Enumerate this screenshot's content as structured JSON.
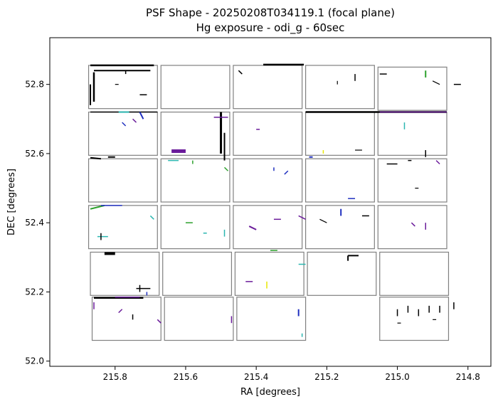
{
  "chart_data": {
    "type": "scatter",
    "title": "PSF Shape - 20250208T034119.1 (focal plane)",
    "subtitle": "Hg exposure - odi_g - 60sec",
    "xlabel": "RA [degrees]",
    "ylabel": "DEC [degrees]",
    "xlim": [
      215.985,
      214.735
    ],
    "ylim": [
      51.985,
      52.935
    ],
    "x_inverted": true,
    "grid": false,
    "legend": "none",
    "xticks": [
      215.8,
      215.6,
      215.4,
      215.2,
      215.0,
      214.8
    ],
    "xtick_labels": [
      "215.8",
      "215.6",
      "215.4",
      "215.2",
      "215.0",
      "214.8"
    ],
    "yticks": [
      52.0,
      52.2,
      52.4,
      52.6,
      52.8
    ],
    "ytick_labels": [
      "52.0",
      "52.2",
      "52.4",
      "52.6",
      "52.8"
    ],
    "cell_color": "#808080",
    "colors": {
      "black": "#000000",
      "purple": "#6a1b9a",
      "blue": "#1f2fbf",
      "teal": "#2bb6b0",
      "green": "#2ca02c",
      "yellow": "#e8e800"
    },
    "cells": [
      {
        "ra0": 215.875,
        "ra1": 215.68,
        "dec0": 52.73,
        "dec1": 52.855
      },
      {
        "ra0": 215.67,
        "ra1": 215.475,
        "dec0": 52.73,
        "dec1": 52.855
      },
      {
        "ra0": 215.465,
        "ra1": 215.27,
        "dec0": 52.73,
        "dec1": 52.855
      },
      {
        "ra0": 215.26,
        "ra1": 215.065,
        "dec0": 52.73,
        "dec1": 52.855
      },
      {
        "ra0": 215.055,
        "ra1": 214.86,
        "dec0": 52.725,
        "dec1": 52.85
      },
      {
        "ra0": 215.875,
        "ra1": 215.68,
        "dec0": 52.595,
        "dec1": 52.72
      },
      {
        "ra0": 215.67,
        "ra1": 215.475,
        "dec0": 52.595,
        "dec1": 52.72
      },
      {
        "ra0": 215.465,
        "ra1": 215.27,
        "dec0": 52.595,
        "dec1": 52.72
      },
      {
        "ra0": 215.26,
        "ra1": 215.065,
        "dec0": 52.595,
        "dec1": 52.72
      },
      {
        "ra0": 215.055,
        "ra1": 214.86,
        "dec0": 52.595,
        "dec1": 52.72
      },
      {
        "ra0": 215.875,
        "ra1": 215.68,
        "dec0": 52.46,
        "dec1": 52.585
      },
      {
        "ra0": 215.67,
        "ra1": 215.475,
        "dec0": 52.46,
        "dec1": 52.585
      },
      {
        "ra0": 215.465,
        "ra1": 215.27,
        "dec0": 52.46,
        "dec1": 52.585
      },
      {
        "ra0": 215.26,
        "ra1": 215.065,
        "dec0": 52.46,
        "dec1": 52.585
      },
      {
        "ra0": 215.055,
        "ra1": 214.86,
        "dec0": 52.46,
        "dec1": 52.585
      },
      {
        "ra0": 215.875,
        "ra1": 215.68,
        "dec0": 52.325,
        "dec1": 52.45
      },
      {
        "ra0": 215.67,
        "ra1": 215.475,
        "dec0": 52.325,
        "dec1": 52.45
      },
      {
        "ra0": 215.465,
        "ra1": 215.27,
        "dec0": 52.325,
        "dec1": 52.45
      },
      {
        "ra0": 215.26,
        "ra1": 215.065,
        "dec0": 52.325,
        "dec1": 52.45
      },
      {
        "ra0": 215.055,
        "ra1": 214.86,
        "dec0": 52.325,
        "dec1": 52.45
      },
      {
        "ra0": 215.87,
        "ra1": 215.675,
        "dec0": 52.19,
        "dec1": 52.315
      },
      {
        "ra0": 215.665,
        "ra1": 215.47,
        "dec0": 52.19,
        "dec1": 52.315
      },
      {
        "ra0": 215.46,
        "ra1": 215.265,
        "dec0": 52.19,
        "dec1": 52.315
      },
      {
        "ra0": 215.255,
        "ra1": 215.06,
        "dec0": 52.19,
        "dec1": 52.315
      },
      {
        "ra0": 215.05,
        "ra1": 214.855,
        "dec0": 52.19,
        "dec1": 52.315
      },
      {
        "ra0": 215.865,
        "ra1": 215.67,
        "dec0": 52.06,
        "dec1": 52.185
      },
      {
        "ra0": 215.66,
        "ra1": 215.465,
        "dec0": 52.06,
        "dec1": 52.185
      },
      {
        "ra0": 215.455,
        "ra1": 215.26,
        "dec0": 52.06,
        "dec1": 52.185
      },
      {
        "ra0": 215.05,
        "ra1": 214.855,
        "dec0": 52.06,
        "dec1": 52.185
      }
    ],
    "psf_segments": [
      {
        "ra0": 215.87,
        "dec0": 52.855,
        "ra1": 215.69,
        "dec1": 52.855,
        "color": "black",
        "w": 2.5
      },
      {
        "ra0": 215.86,
        "dec0": 52.84,
        "ra1": 215.7,
        "dec1": 52.84,
        "color": "black",
        "w": 2
      },
      {
        "ra0": 215.86,
        "dec0": 52.835,
        "ra1": 215.86,
        "dec1": 52.75,
        "color": "black",
        "w": 2.5
      },
      {
        "ra0": 215.87,
        "dec0": 52.8,
        "ra1": 215.87,
        "dec1": 52.74,
        "color": "black",
        "w": 2
      },
      {
        "ra0": 215.8,
        "dec0": 52.8,
        "ra1": 215.79,
        "dec1": 52.8,
        "color": "black",
        "w": 1.2
      },
      {
        "ra0": 215.73,
        "dec0": 52.77,
        "ra1": 215.71,
        "dec1": 52.77,
        "color": "black",
        "w": 1.5
      },
      {
        "ra0": 215.77,
        "dec0": 52.84,
        "ra1": 215.77,
        "dec1": 52.83,
        "color": "black",
        "w": 1.5
      },
      {
        "ra0": 215.38,
        "dec0": 52.857,
        "ra1": 215.265,
        "dec1": 52.857,
        "color": "black",
        "w": 2.5
      },
      {
        "ra0": 215.45,
        "dec0": 52.84,
        "ra1": 215.44,
        "dec1": 52.83,
        "color": "black",
        "w": 1.5
      },
      {
        "ra0": 215.17,
        "dec0": 52.81,
        "ra1": 215.17,
        "dec1": 52.8,
        "color": "black",
        "w": 1.2
      },
      {
        "ra0": 215.12,
        "dec0": 52.83,
        "ra1": 215.12,
        "dec1": 52.81,
        "color": "black",
        "w": 1.5
      },
      {
        "ra0": 215.05,
        "dec0": 52.83,
        "ra1": 215.03,
        "dec1": 52.83,
        "color": "black",
        "w": 1.5
      },
      {
        "ra0": 214.92,
        "dec0": 52.84,
        "ra1": 214.92,
        "dec1": 52.82,
        "color": "green",
        "w": 2
      },
      {
        "ra0": 214.88,
        "dec0": 52.8,
        "ra1": 214.9,
        "dec1": 52.81,
        "color": "black",
        "w": 1.2
      },
      {
        "ra0": 214.84,
        "dec0": 52.8,
        "ra1": 214.82,
        "dec1": 52.8,
        "color": "black",
        "w": 1.5
      },
      {
        "ra0": 215.87,
        "dec0": 52.72,
        "ra1": 215.68,
        "dec1": 52.72,
        "color": "black",
        "w": 1.5
      },
      {
        "ra0": 215.79,
        "dec0": 52.72,
        "ra1": 215.76,
        "dec1": 52.72,
        "color": "teal",
        "w": 2
      },
      {
        "ra0": 215.73,
        "dec0": 52.72,
        "ra1": 215.72,
        "dec1": 52.7,
        "color": "blue",
        "w": 2
      },
      {
        "ra0": 215.78,
        "dec0": 52.69,
        "ra1": 215.77,
        "dec1": 52.68,
        "color": "blue",
        "w": 1.5
      },
      {
        "ra0": 215.75,
        "dec0": 52.7,
        "ra1": 215.74,
        "dec1": 52.69,
        "color": "purple",
        "w": 1.5
      },
      {
        "ra0": 215.5,
        "dec0": 52.72,
        "ra1": 215.5,
        "dec1": 52.6,
        "color": "black",
        "w": 3
      },
      {
        "ra0": 215.49,
        "dec0": 52.66,
        "ra1": 215.49,
        "dec1": 52.58,
        "color": "black",
        "w": 2
      },
      {
        "ra0": 215.52,
        "dec0": 52.705,
        "ra1": 215.48,
        "dec1": 52.705,
        "color": "purple",
        "w": 1.5
      },
      {
        "ra0": 215.64,
        "dec0": 52.607,
        "ra1": 215.6,
        "dec1": 52.607,
        "color": "purple",
        "w": 5
      },
      {
        "ra0": 215.26,
        "dec0": 52.72,
        "ra1": 214.86,
        "dec1": 52.72,
        "color": "black",
        "w": 2.5
      },
      {
        "ra0": 215.05,
        "dec0": 52.72,
        "ra1": 214.86,
        "dec1": 52.72,
        "color": "purple",
        "w": 1.5
      },
      {
        "ra0": 214.98,
        "dec0": 52.69,
        "ra1": 214.98,
        "dec1": 52.67,
        "color": "teal",
        "w": 1.5
      },
      {
        "ra0": 215.4,
        "dec0": 52.67,
        "ra1": 215.39,
        "dec1": 52.67,
        "color": "purple",
        "w": 1.5
      },
      {
        "ra0": 215.12,
        "dec0": 52.61,
        "ra1": 215.1,
        "dec1": 52.61,
        "color": "black",
        "w": 1.2
      },
      {
        "ra0": 214.92,
        "dec0": 52.61,
        "ra1": 214.92,
        "dec1": 52.59,
        "color": "black",
        "w": 1.5
      },
      {
        "ra0": 215.87,
        "dec0": 52.588,
        "ra1": 215.84,
        "dec1": 52.585,
        "color": "black",
        "w": 2
      },
      {
        "ra0": 215.82,
        "dec0": 52.59,
        "ra1": 215.8,
        "dec1": 52.59,
        "color": "black",
        "w": 2
      },
      {
        "ra0": 215.65,
        "dec0": 52.58,
        "ra1": 215.62,
        "dec1": 52.58,
        "color": "teal",
        "w": 1.5
      },
      {
        "ra0": 215.58,
        "dec0": 52.58,
        "ra1": 215.58,
        "dec1": 52.57,
        "color": "green",
        "w": 1.5
      },
      {
        "ra0": 215.49,
        "dec0": 52.56,
        "ra1": 215.48,
        "dec1": 52.55,
        "color": "green",
        "w": 1.5
      },
      {
        "ra0": 215.35,
        "dec0": 52.56,
        "ra1": 215.35,
        "dec1": 52.55,
        "color": "blue",
        "w": 1.5
      },
      {
        "ra0": 215.32,
        "dec0": 52.54,
        "ra1": 215.31,
        "dec1": 52.55,
        "color": "blue",
        "w": 1.5
      },
      {
        "ra0": 215.25,
        "dec0": 52.59,
        "ra1": 215.24,
        "dec1": 52.59,
        "color": "blue",
        "w": 2
      },
      {
        "ra0": 215.21,
        "dec0": 52.6,
        "ra1": 215.21,
        "dec1": 52.61,
        "color": "yellow",
        "w": 1.5
      },
      {
        "ra0": 215.14,
        "dec0": 52.47,
        "ra1": 215.12,
        "dec1": 52.47,
        "color": "blue",
        "w": 1.5
      },
      {
        "ra0": 215.03,
        "dec0": 52.57,
        "ra1": 215.0,
        "dec1": 52.57,
        "color": "black",
        "w": 1.5
      },
      {
        "ra0": 214.97,
        "dec0": 52.58,
        "ra1": 214.96,
        "dec1": 52.58,
        "color": "black",
        "w": 1.5
      },
      {
        "ra0": 214.89,
        "dec0": 52.58,
        "ra1": 214.88,
        "dec1": 52.57,
        "color": "purple",
        "w": 1.5
      },
      {
        "ra0": 214.95,
        "dec0": 52.5,
        "ra1": 214.94,
        "dec1": 52.5,
        "color": "black",
        "w": 1.2
      },
      {
        "ra0": 215.87,
        "dec0": 52.44,
        "ra1": 215.83,
        "dec1": 52.45,
        "color": "green",
        "w": 2
      },
      {
        "ra0": 215.84,
        "dec0": 52.45,
        "ra1": 215.78,
        "dec1": 52.45,
        "color": "blue",
        "w": 1.5
      },
      {
        "ra0": 215.85,
        "dec0": 52.36,
        "ra1": 215.82,
        "dec1": 52.36,
        "color": "teal",
        "w": 1.5
      },
      {
        "ra0": 215.84,
        "dec0": 52.37,
        "ra1": 215.84,
        "dec1": 52.35,
        "color": "black",
        "w": 1.5
      },
      {
        "ra0": 215.7,
        "dec0": 52.42,
        "ra1": 215.69,
        "dec1": 52.41,
        "color": "teal",
        "w": 1.5
      },
      {
        "ra0": 215.6,
        "dec0": 52.4,
        "ra1": 215.58,
        "dec1": 52.4,
        "color": "green",
        "w": 1.5
      },
      {
        "ra0": 215.55,
        "dec0": 52.37,
        "ra1": 215.54,
        "dec1": 52.37,
        "color": "teal",
        "w": 1.5
      },
      {
        "ra0": 215.49,
        "dec0": 52.38,
        "ra1": 215.49,
        "dec1": 52.36,
        "color": "teal",
        "w": 1.5
      },
      {
        "ra0": 215.42,
        "dec0": 52.39,
        "ra1": 215.4,
        "dec1": 52.38,
        "color": "purple",
        "w": 2
      },
      {
        "ra0": 215.35,
        "dec0": 52.41,
        "ra1": 215.33,
        "dec1": 52.41,
        "color": "purple",
        "w": 1.5
      },
      {
        "ra0": 215.28,
        "dec0": 52.42,
        "ra1": 215.26,
        "dec1": 52.41,
        "color": "purple",
        "w": 1.5
      },
      {
        "ra0": 215.22,
        "dec0": 52.41,
        "ra1": 215.2,
        "dec1": 52.4,
        "color": "black",
        "w": 1.2
      },
      {
        "ra0": 215.16,
        "dec0": 52.44,
        "ra1": 215.16,
        "dec1": 52.42,
        "color": "blue",
        "w": 2
      },
      {
        "ra0": 215.1,
        "dec0": 52.42,
        "ra1": 215.08,
        "dec1": 52.42,
        "color": "black",
        "w": 1.5
      },
      {
        "ra0": 214.96,
        "dec0": 52.4,
        "ra1": 214.95,
        "dec1": 52.39,
        "color": "purple",
        "w": 1.5
      },
      {
        "ra0": 214.92,
        "dec0": 52.4,
        "ra1": 214.92,
        "dec1": 52.38,
        "color": "purple",
        "w": 1.5
      },
      {
        "ra0": 215.83,
        "dec0": 52.311,
        "ra1": 215.8,
        "dec1": 52.311,
        "color": "black",
        "w": 4
      },
      {
        "ra0": 215.73,
        "dec0": 52.22,
        "ra1": 215.73,
        "dec1": 52.2,
        "color": "black",
        "w": 1.5
      },
      {
        "ra0": 215.74,
        "dec0": 52.21,
        "ra1": 215.7,
        "dec1": 52.21,
        "color": "black",
        "w": 1.5
      },
      {
        "ra0": 215.71,
        "dec0": 52.2,
        "ra1": 215.71,
        "dec1": 52.19,
        "color": "blue",
        "w": 1.5
      },
      {
        "ra0": 215.43,
        "dec0": 52.23,
        "ra1": 215.41,
        "dec1": 52.23,
        "color": "purple",
        "w": 1.5
      },
      {
        "ra0": 215.36,
        "dec0": 52.32,
        "ra1": 215.34,
        "dec1": 52.32,
        "color": "green",
        "w": 1.5
      },
      {
        "ra0": 215.37,
        "dec0": 52.23,
        "ra1": 215.37,
        "dec1": 52.21,
        "color": "yellow",
        "w": 1.5
      },
      {
        "ra0": 215.28,
        "dec0": 52.28,
        "ra1": 215.26,
        "dec1": 52.28,
        "color": "teal",
        "w": 1.5
      },
      {
        "ra0": 215.14,
        "dec0": 52.305,
        "ra1": 215.11,
        "dec1": 52.305,
        "color": "black",
        "w": 2
      },
      {
        "ra0": 215.14,
        "dec0": 52.305,
        "ra1": 215.14,
        "dec1": 52.29,
        "color": "black",
        "w": 2
      },
      {
        "ra0": 215.86,
        "dec0": 52.183,
        "ra1": 215.72,
        "dec1": 52.183,
        "color": "black",
        "w": 2.5
      },
      {
        "ra0": 215.8,
        "dec0": 52.185,
        "ra1": 215.73,
        "dec1": 52.185,
        "color": "purple",
        "w": 1.5
      },
      {
        "ra0": 215.86,
        "dec0": 52.17,
        "ra1": 215.86,
        "dec1": 52.15,
        "color": "purple",
        "w": 1.5
      },
      {
        "ra0": 215.68,
        "dec0": 52.12,
        "ra1": 215.67,
        "dec1": 52.11,
        "color": "purple",
        "w": 1.5
      },
      {
        "ra0": 215.79,
        "dec0": 52.14,
        "ra1": 215.78,
        "dec1": 52.15,
        "color": "purple",
        "w": 1.5
      },
      {
        "ra0": 215.75,
        "dec0": 52.135,
        "ra1": 215.75,
        "dec1": 52.12,
        "color": "black",
        "w": 1.5
      },
      {
        "ra0": 215.47,
        "dec0": 52.13,
        "ra1": 215.47,
        "dec1": 52.11,
        "color": "purple",
        "w": 1.5
      },
      {
        "ra0": 215.28,
        "dec0": 52.15,
        "ra1": 215.28,
        "dec1": 52.13,
        "color": "blue",
        "w": 2
      },
      {
        "ra0": 215.27,
        "dec0": 52.08,
        "ra1": 215.27,
        "dec1": 52.07,
        "color": "teal",
        "w": 1.5
      },
      {
        "ra0": 215.0,
        "dec0": 52.15,
        "ra1": 215.0,
        "dec1": 52.13,
        "color": "black",
        "w": 1.5
      },
      {
        "ra0": 214.97,
        "dec0": 52.16,
        "ra1": 214.97,
        "dec1": 52.14,
        "color": "black",
        "w": 1.5
      },
      {
        "ra0": 214.94,
        "dec0": 52.15,
        "ra1": 214.94,
        "dec1": 52.13,
        "color": "black",
        "w": 1.5
      },
      {
        "ra0": 214.91,
        "dec0": 52.16,
        "ra1": 214.91,
        "dec1": 52.14,
        "color": "black",
        "w": 1.5
      },
      {
        "ra0": 214.88,
        "dec0": 52.16,
        "ra1": 214.88,
        "dec1": 52.14,
        "color": "black",
        "w": 1.5
      },
      {
        "ra0": 214.84,
        "dec0": 52.17,
        "ra1": 214.84,
        "dec1": 52.15,
        "color": "black",
        "w": 1.5
      },
      {
        "ra0": 214.9,
        "dec0": 52.12,
        "ra1": 214.89,
        "dec1": 52.12,
        "color": "black",
        "w": 1.2
      },
      {
        "ra0": 215.0,
        "dec0": 52.11,
        "ra1": 214.99,
        "dec1": 52.11,
        "color": "black",
        "w": 1.2
      }
    ]
  }
}
